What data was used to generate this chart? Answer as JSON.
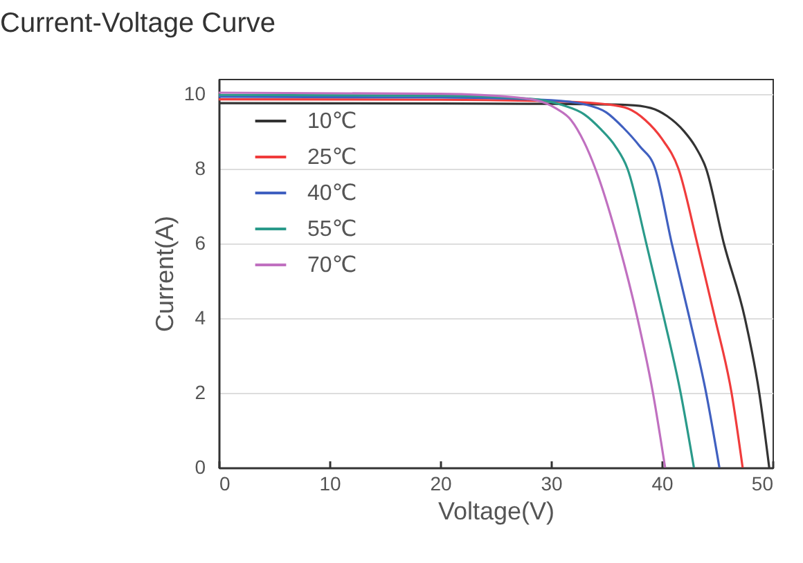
{
  "chart_data": {
    "type": "line",
    "title": "Current-Voltage Curve",
    "xlabel": "Voltage(V)",
    "ylabel": "Current(A)",
    "xlim": [
      0,
      50
    ],
    "ylim": [
      0,
      10.4
    ],
    "xticks": [
      0,
      10,
      20,
      30,
      40,
      50
    ],
    "yticks": [
      0,
      2,
      4,
      6,
      8,
      10
    ],
    "grid": "y",
    "legend": "top left",
    "marker": "none",
    "line_style": "solid",
    "series": [
      {
        "name": "10℃",
        "color": "#333333",
        "x": [
          0,
          20,
          30,
          37,
          39,
          40.5,
          42,
          43,
          44,
          45.6,
          47.5,
          48.8,
          49.7
        ],
        "values": [
          9.75,
          9.74,
          9.73,
          9.7,
          9.62,
          9.4,
          9.0,
          8.6,
          8.0,
          6,
          4,
          2,
          0
        ]
      },
      {
        "name": "25℃",
        "color": "#f03c3c",
        "x": [
          0,
          20,
          30,
          35,
          37,
          38.5,
          40,
          41.5,
          43.2,
          44.8,
          46.3,
          47.3
        ],
        "values": [
          9.85,
          9.84,
          9.8,
          9.72,
          9.6,
          9.3,
          8.8,
          8.0,
          6,
          4,
          2,
          0
        ]
      },
      {
        "name": "40℃",
        "color": "#4060c0",
        "x": [
          0,
          20,
          30,
          33,
          35,
          36.5,
          38,
          39.4,
          40.9,
          42.5,
          44,
          45.2
        ],
        "values": [
          9.92,
          9.9,
          9.83,
          9.72,
          9.5,
          9.1,
          8.6,
          8.0,
          6,
          4,
          2,
          0
        ]
      },
      {
        "name": "55℃",
        "color": "#2a9a8a",
        "x": [
          0,
          20,
          28,
          31,
          33,
          34.5,
          35.8,
          36.9,
          38.6,
          40.2,
          41.7,
          42.9
        ],
        "values": [
          9.97,
          9.95,
          9.87,
          9.7,
          9.45,
          9.05,
          8.6,
          8.0,
          6,
          4,
          2,
          0
        ]
      },
      {
        "name": "70℃",
        "color": "#c070c0",
        "x": [
          0,
          20,
          27,
          29.5,
          30.5,
          31.8,
          33,
          34,
          36.1,
          37.8,
          39.2,
          40.3
        ],
        "values": [
          10.03,
          10.0,
          9.9,
          9.75,
          9.6,
          9.3,
          8.7,
          8.0,
          6,
          4,
          2,
          0
        ]
      }
    ]
  }
}
